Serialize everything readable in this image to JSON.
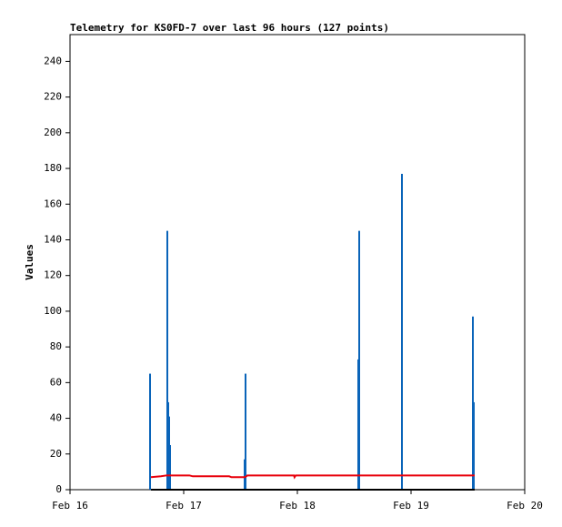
{
  "chart_data": {
    "type": "line",
    "title": "Telemetry for KS0FD-7 over last 96 hours (127 points)",
    "ylabel": "Values",
    "xlim": [
      16,
      20
    ],
    "xticks": [
      {
        "value": 16,
        "label": "Feb 16"
      },
      {
        "value": 17,
        "label": "Feb 17"
      },
      {
        "value": 18,
        "label": "Feb 18"
      },
      {
        "value": 19,
        "label": "Feb 19"
      },
      {
        "value": 20,
        "label": "Feb 20"
      }
    ],
    "ylim": [
      0,
      255
    ],
    "yticks": [
      0,
      20,
      40,
      60,
      80,
      100,
      120,
      140,
      160,
      180,
      200,
      220,
      240
    ],
    "series": [
      {
        "color": "#0a64b9",
        "style": "stem",
        "x": [
          16.704,
          16.856,
          16.864,
          16.872,
          16.88,
          17.536,
          17.544,
          18.536,
          18.544,
          18.92,
          19.544,
          19.552
        ],
        "values": [
          65,
          145,
          49,
          41,
          25,
          17,
          65,
          73,
          145,
          177,
          97,
          49
        ]
      },
      {
        "color": "#e8000b",
        "style": "line",
        "x": [
          16.712,
          16.8,
          16.85,
          16.9,
          17.05,
          17.08,
          17.4,
          17.42,
          17.54,
          17.56,
          17.97,
          17.975,
          17.985,
          19.56
        ],
        "values": [
          7,
          7.5,
          8,
          8,
          8,
          7.5,
          7.5,
          7,
          7,
          8,
          8,
          7,
          8,
          8
        ]
      },
      {
        "color": "#000000",
        "style": "line",
        "x": [
          16.712,
          19.56
        ],
        "values": [
          0,
          0
        ]
      }
    ]
  }
}
